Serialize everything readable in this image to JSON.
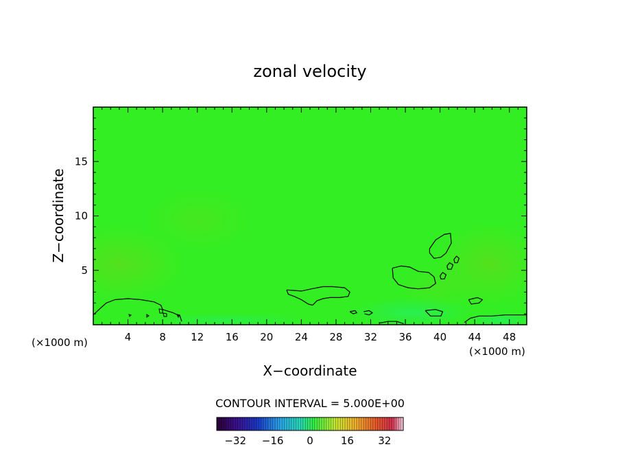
{
  "chart_data": {
    "type": "heatmap",
    "title": "zonal velocity",
    "xlabel": "X−coordinate",
    "ylabel": "Z−coordinate",
    "x_unit_left": "(×1000 m)",
    "x_unit_right": "(×1000 m)",
    "xlim": [
      0,
      50
    ],
    "ylim": [
      0,
      20
    ],
    "x_ticks": [
      4,
      8,
      12,
      16,
      20,
      24,
      28,
      32,
      36,
      40,
      44,
      48
    ],
    "x_tick_labels": [
      "4",
      "8",
      "12",
      "16",
      "20",
      "24",
      "28",
      "32",
      "36",
      "40",
      "44",
      "48"
    ],
    "y_ticks": [
      5,
      10,
      15
    ],
    "y_tick_labels": [
      "5",
      "10",
      "15"
    ],
    "grid": false,
    "field_color": "#33ee22",
    "contour_interval_text": "CONTOUR INTERVAL = 5.000E+00",
    "colorbar": {
      "range": [
        -40,
        40
      ],
      "ticks": [
        -32,
        -16,
        0,
        16,
        32
      ],
      "tick_labels": [
        "−32",
        "−16",
        "0",
        "16",
        "32"
      ]
    },
    "contours": [
      {
        "name": "left-low",
        "points": [
          [
            0,
            0.9
          ],
          [
            0.8,
            1.5
          ],
          [
            1.5,
            2
          ],
          [
            2.5,
            2.3
          ],
          [
            4,
            2.4
          ],
          [
            5.5,
            2.3
          ],
          [
            7,
            2.1
          ],
          [
            7.8,
            1.8
          ],
          [
            8,
            1.4
          ],
          [
            9.2,
            1.1
          ],
          [
            10,
            0.8
          ],
          [
            10.2,
            0.3
          ]
        ]
      },
      {
        "name": "mid-low",
        "points": [
          [
            22.3,
            3.2
          ],
          [
            24,
            3.1
          ],
          [
            25.2,
            3.3
          ],
          [
            26.5,
            3.5
          ],
          [
            27.6,
            3.5
          ],
          [
            29,
            3.4
          ],
          [
            29.6,
            3
          ],
          [
            29.4,
            2.6
          ],
          [
            28.4,
            2.5
          ],
          [
            27.3,
            2.5
          ],
          [
            26.5,
            2.4
          ],
          [
            25.8,
            2.2
          ],
          [
            25.3,
            1.8
          ],
          [
            24.8,
            1.9
          ],
          [
            24,
            2.3
          ],
          [
            23.2,
            2.6
          ],
          [
            22.5,
            2.8
          ],
          [
            22.3,
            3.2
          ]
        ]
      },
      {
        "name": "mid-right",
        "points": [
          [
            34.5,
            5.2
          ],
          [
            35.5,
            5.4
          ],
          [
            36.5,
            5.3
          ],
          [
            37.5,
            4.9
          ],
          [
            38.7,
            4.8
          ],
          [
            39.3,
            4.4
          ],
          [
            39.5,
            3.8
          ],
          [
            38.8,
            3.4
          ],
          [
            37.5,
            3.3
          ],
          [
            36.3,
            3.4
          ],
          [
            35.2,
            3.7
          ],
          [
            34.6,
            4.3
          ],
          [
            34.5,
            5.2
          ]
        ]
      },
      {
        "name": "upper-right",
        "points": [
          [
            38.8,
            7
          ],
          [
            39.5,
            7.8
          ],
          [
            40.5,
            8.3
          ],
          [
            41.2,
            8.4
          ],
          [
            41.3,
            7.5
          ],
          [
            40.7,
            6.6
          ],
          [
            40.1,
            6.2
          ],
          [
            39.3,
            6.1
          ],
          [
            38.8,
            6.6
          ],
          [
            38.8,
            7
          ]
        ]
      },
      {
        "name": "right-low",
        "points": [
          [
            42.8,
            0.2
          ],
          [
            43.5,
            0.6
          ],
          [
            44.5,
            0.8
          ],
          [
            46,
            0.8
          ],
          [
            47.5,
            0.9
          ],
          [
            49,
            0.9
          ],
          [
            50,
            0.9
          ]
        ]
      },
      {
        "name": "small-1",
        "points": [
          [
            43.3,
            2.3
          ],
          [
            44.3,
            2.5
          ],
          [
            44.9,
            2.3
          ],
          [
            44.5,
            2
          ],
          [
            43.6,
            1.9
          ],
          [
            43.3,
            2.3
          ]
        ]
      },
      {
        "name": "small-2",
        "points": [
          [
            38.3,
            1.3
          ],
          [
            39.5,
            1.4
          ],
          [
            40.3,
            1.2
          ],
          [
            40.1,
            0.8
          ],
          [
            38.9,
            0.8
          ],
          [
            38.3,
            1.3
          ]
        ]
      },
      {
        "name": "small-3",
        "points": [
          [
            31.2,
            1.2
          ],
          [
            31.8,
            1.3
          ],
          [
            32.2,
            1.1
          ],
          [
            31.8,
            0.9
          ],
          [
            31.3,
            1
          ]
        ]
      },
      {
        "name": "small-4",
        "points": [
          [
            29.6,
            1.2
          ],
          [
            30.2,
            1.3
          ],
          [
            30.4,
            1.1
          ],
          [
            30,
            1
          ],
          [
            29.6,
            1.2
          ]
        ]
      },
      {
        "name": "bottom-mid",
        "points": [
          [
            33,
            0.15
          ],
          [
            34,
            0.3
          ],
          [
            35,
            0.3
          ],
          [
            35.8,
            0.1
          ]
        ]
      },
      {
        "name": "oval-1",
        "points": [
          [
            40,
            4.5
          ],
          [
            40.3,
            4.8
          ],
          [
            40.7,
            4.6
          ],
          [
            40.5,
            4.2
          ],
          [
            40.1,
            4.2
          ],
          [
            40,
            4.5
          ]
        ]
      },
      {
        "name": "oval-2",
        "points": [
          [
            40.8,
            5.4
          ],
          [
            41.1,
            5.7
          ],
          [
            41.5,
            5.5
          ],
          [
            41.3,
            5.1
          ],
          [
            40.9,
            5.1
          ],
          [
            40.8,
            5.4
          ]
        ]
      },
      {
        "name": "oval-3",
        "points": [
          [
            41.6,
            6
          ],
          [
            41.9,
            6.3
          ],
          [
            42.2,
            6.1
          ],
          [
            42,
            5.7
          ],
          [
            41.7,
            5.7
          ],
          [
            41.6,
            6
          ]
        ]
      }
    ]
  }
}
